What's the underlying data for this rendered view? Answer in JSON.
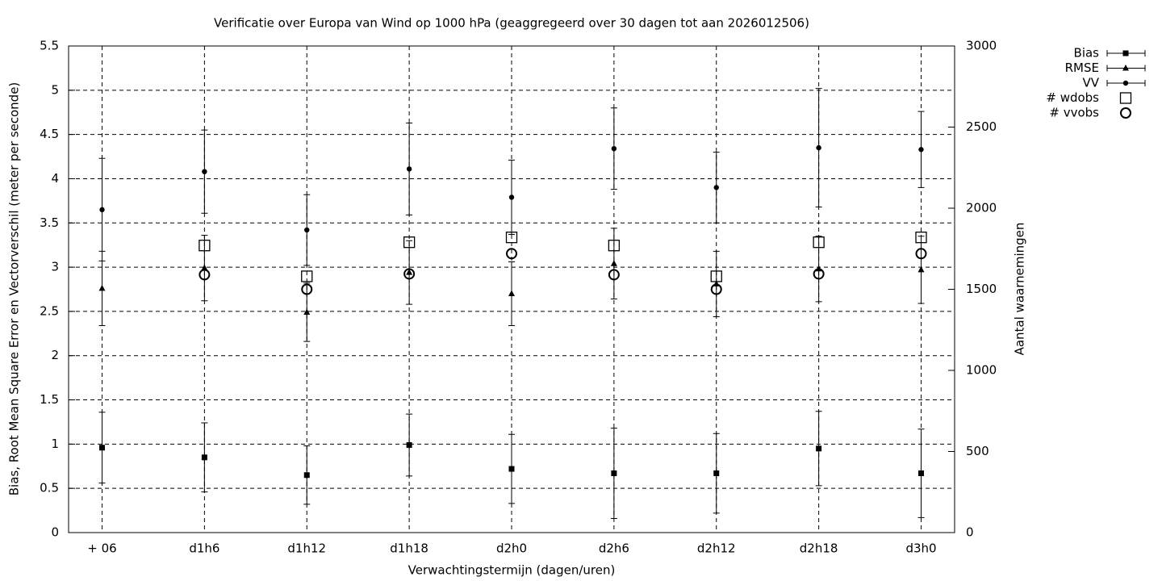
{
  "chart_data": {
    "type": "errorbar",
    "title": "Verificatie over Europa van Wind op 1000 hPa (geaggregeerd over 30 dagen tot aan 2026012506)",
    "xlabel": "Verwachtingstermijn (dagen/uren)",
    "ylabel": "Bias, Root Mean Square Error en Vectorverschil (meter per seconde)",
    "y2label": "Aantal waarnemingen",
    "categories": [
      "+ 06",
      "d1h6",
      "d1h12",
      "d1h18",
      "d2h0",
      "d2h6",
      "d2h12",
      "d2h18",
      "d3h0"
    ],
    "ylim": [
      0,
      5.5
    ],
    "yticks": [
      0,
      0.5,
      1,
      1.5,
      2,
      2.5,
      3,
      3.5,
      4,
      4.5,
      5,
      5.5
    ],
    "y2lim": [
      0,
      3000
    ],
    "y2ticks": [
      0,
      500,
      1000,
      1500,
      2000,
      2500,
      3000
    ],
    "grid": true,
    "legend": "outside-top-right",
    "series": [
      {
        "name": "Bias",
        "color": "#000000",
        "values": [
          0.96,
          0.85,
          0.65,
          0.99,
          0.72,
          0.67,
          0.67,
          0.95,
          0.67
        ],
        "errors": [
          0.4,
          0.39,
          0.33,
          0.35,
          0.39,
          0.51,
          0.45,
          0.42,
          0.5
        ]
      },
      {
        "name": "RMSE",
        "color": "#000000",
        "values": [
          2.76,
          2.99,
          2.49,
          2.94,
          2.7,
          3.04,
          2.81,
          2.98,
          2.97
        ],
        "errors": [
          0.42,
          0.37,
          0.33,
          0.36,
          0.36,
          0.4,
          0.37,
          0.37,
          0.38
        ]
      },
      {
        "name": "VV",
        "color": "#000000",
        "values": [
          3.65,
          4.08,
          3.42,
          4.11,
          3.79,
          4.34,
          3.9,
          4.35,
          4.33
        ],
        "errors": [
          0.58,
          0.47,
          0.4,
          0.52,
          0.42,
          0.46,
          0.4,
          0.67,
          0.43
        ]
      },
      {
        "name": "# wdobs",
        "color": "#000000",
        "axis": "y2",
        "values": [
          null,
          1770,
          1580,
          1790,
          1820,
          1770,
          1580,
          1790,
          1820
        ]
      },
      {
        "name": "# vvobs",
        "color": "#000000",
        "axis": "y2",
        "values": [
          null,
          1590,
          1500,
          1595,
          1720,
          1590,
          1500,
          1595,
          1720
        ]
      }
    ]
  }
}
